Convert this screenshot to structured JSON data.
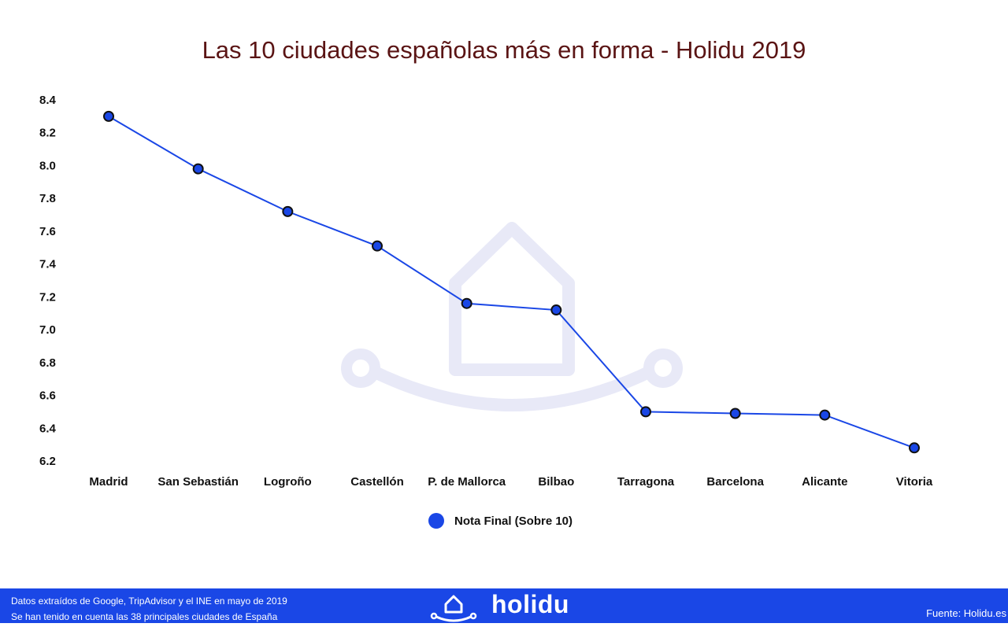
{
  "colors": {
    "title": "#5a1414",
    "line": "#1a47e6",
    "marker_fill": "#1a47e6",
    "marker_stroke": "#111111",
    "watermark": "#e8e9f7",
    "footer_bg": "#1a47e6"
  },
  "chart_data": {
    "type": "line",
    "title": "Las 10 ciudades españolas más en forma - Holidu 2019",
    "xlabel": "",
    "ylabel": "",
    "categories": [
      "Madrid",
      "San Sebastián",
      "Logroño",
      "Castellón",
      "P. de Mallorca",
      "Bilbao",
      "Tarragona",
      "Barcelona",
      "Alicante",
      "Vitoria"
    ],
    "series": [
      {
        "name": "Nota Final (Sobre 10)",
        "values": [
          8.3,
          7.98,
          7.72,
          7.51,
          7.16,
          7.12,
          6.5,
          6.49,
          6.48,
          6.28
        ]
      }
    ],
    "ylim": [
      6.2,
      8.4
    ],
    "yticks": [
      "8.4",
      "8.2",
      "8.0",
      "7.8",
      "7.6",
      "7.4",
      "7.2",
      "7.0",
      "6.8",
      "6.6",
      "6.4",
      "6.2"
    ],
    "grid": false,
    "legend_position": "bottom-center"
  },
  "footer": {
    "note_line_1": "Datos extraídos de Google, TripAdvisor y el INE en mayo de 2019",
    "note_line_2": "Se han tenido en cuenta las 38 principales ciudades de España",
    "brand": "holidu",
    "source": "Fuente: Holidu.es"
  }
}
